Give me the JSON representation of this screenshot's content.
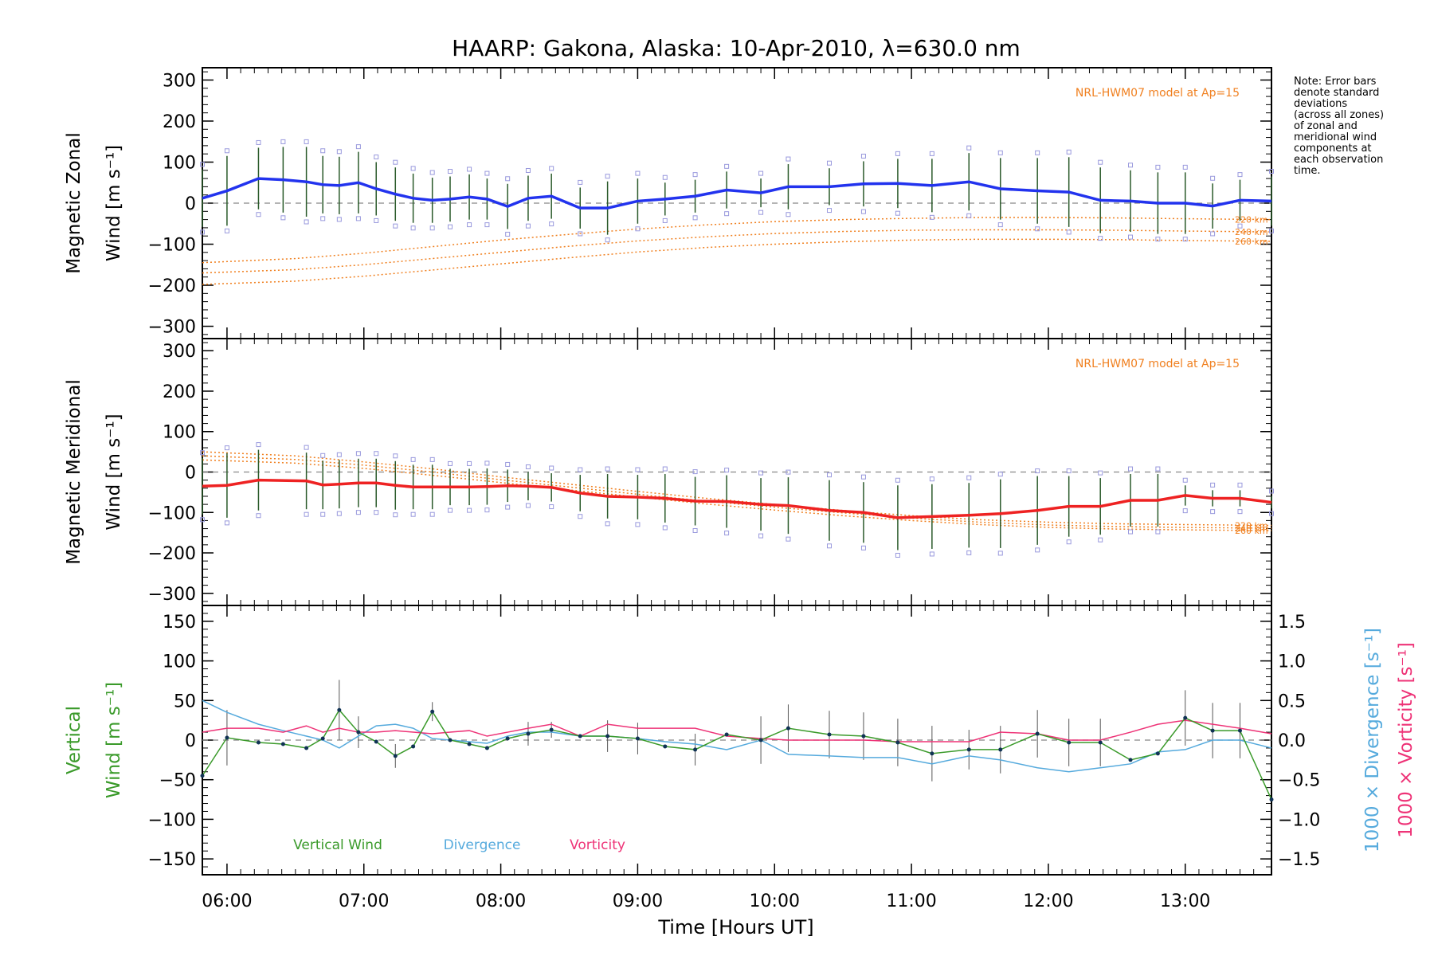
{
  "title": "HAARP: Gakona,  Alaska: 10-Apr-2010, λ=630.0 nm",
  "note_lines": [
    "Note: Error bars",
    "denote standard",
    "deviations",
    "(across all zones)",
    "of zonal and",
    "meridional wind",
    "components at",
    "each observation",
    "time."
  ],
  "colors": {
    "zonal": "#2233ee",
    "meridional": "#ee2222",
    "model": "#f08020",
    "vertical": "#3a9a2a",
    "divergence": "#55aadd",
    "vorticity": "#ee3377",
    "zone_points": "#9999dd",
    "error_bars": "#555555"
  },
  "chart_data": [
    {
      "type": "line",
      "panel": "zonal",
      "ylabel_line1": "Magnetic Zonal",
      "ylabel_line2": "Wind [m s⁻¹]",
      "model_label": "NRL-HWM07 model at Ap=15",
      "ylim": [
        -330,
        330
      ],
      "yticks": [
        -300,
        -200,
        -100,
        0,
        100,
        200,
        300
      ],
      "series": [
        {
          "role": "wind",
          "x": [
            5.82,
            6.0,
            6.23,
            6.41,
            6.58,
            6.7,
            6.82,
            6.96,
            7.09,
            7.23,
            7.36,
            7.5,
            7.63,
            7.77,
            7.9,
            8.05,
            8.2,
            8.37,
            8.58,
            8.78,
            9.0,
            9.2,
            9.42,
            9.65,
            9.9,
            10.1,
            10.4,
            10.65,
            10.9,
            11.15,
            11.42,
            11.65,
            11.92,
            12.15,
            12.38,
            12.6,
            12.8,
            13.0,
            13.2,
            13.4,
            13.63
          ],
          "y": [
            12,
            30,
            60,
            57,
            52,
            45,
            43,
            50,
            35,
            22,
            12,
            7,
            10,
            15,
            10,
            -8,
            12,
            17,
            -12,
            -12,
            5,
            10,
            17,
            32,
            25,
            40,
            40,
            47,
            48,
            43,
            52,
            35,
            30,
            27,
            7,
            5,
            0,
            0,
            -7,
            7,
            5
          ],
          "err": [
            70,
            85,
            75,
            80,
            85,
            70,
            70,
            75,
            65,
            65,
            60,
            55,
            55,
            55,
            50,
            55,
            55,
            55,
            50,
            65,
            55,
            40,
            40,
            45,
            35,
            55,
            45,
            55,
            60,
            65,
            70,
            75,
            80,
            85,
            80,
            75,
            75,
            75,
            55,
            50,
            60
          ]
        },
        {
          "role": "model",
          "name": "220 km",
          "x": [
            5.82,
            6.5,
            7.0,
            7.5,
            8.0,
            8.5,
            9.0,
            9.5,
            10.0,
            10.5,
            11.0,
            11.5,
            12.0,
            12.5,
            13.0,
            13.63
          ],
          "y": [
            -145,
            -135,
            -122,
            -106,
            -90,
            -76,
            -63,
            -53,
            -45,
            -40,
            -37,
            -35,
            -35,
            -36,
            -38,
            -40
          ]
        },
        {
          "role": "model",
          "name": "240 km",
          "x": [
            5.82,
            6.5,
            7.0,
            7.5,
            8.0,
            8.5,
            9.0,
            9.5,
            10.0,
            10.5,
            11.0,
            11.5,
            12.0,
            12.5,
            13.0,
            13.63
          ],
          "y": [
            -170,
            -162,
            -150,
            -135,
            -120,
            -105,
            -92,
            -82,
            -74,
            -69,
            -66,
            -65,
            -65,
            -66,
            -68,
            -70
          ]
        },
        {
          "role": "model",
          "name": "260 km",
          "x": [
            5.82,
            6.5,
            7.0,
            7.5,
            8.0,
            8.5,
            9.0,
            9.5,
            10.0,
            10.5,
            11.0,
            11.5,
            12.0,
            12.5,
            13.0,
            13.63
          ],
          "y": [
            -198,
            -190,
            -178,
            -163,
            -148,
            -133,
            -119,
            -108,
            -100,
            -94,
            -90,
            -88,
            -88,
            -89,
            -91,
            -93
          ]
        }
      ]
    },
    {
      "type": "line",
      "panel": "meridional",
      "ylabel_line1": "Magnetic Meridional",
      "ylabel_line2": "Wind [m s⁻¹]",
      "model_label": "NRL-HWM07 model at Ap=15",
      "ylim": [
        -330,
        330
      ],
      "yticks": [
        -300,
        -200,
        -100,
        0,
        100,
        200,
        300
      ],
      "series": [
        {
          "role": "wind",
          "x": [
            5.82,
            6.0,
            6.23,
            6.58,
            6.7,
            6.82,
            6.96,
            7.09,
            7.23,
            7.36,
            7.5,
            7.63,
            7.77,
            7.9,
            8.05,
            8.2,
            8.37,
            8.58,
            8.78,
            9.0,
            9.2,
            9.42,
            9.65,
            9.9,
            10.1,
            10.4,
            10.65,
            10.9,
            11.15,
            11.42,
            11.65,
            11.92,
            12.15,
            12.38,
            12.6,
            12.8,
            13.0,
            13.2,
            13.4,
            13.63
          ],
          "y": [
            -35,
            -33,
            -20,
            -22,
            -32,
            -30,
            -27,
            -27,
            -33,
            -37,
            -37,
            -37,
            -37,
            -36,
            -34,
            -35,
            -38,
            -52,
            -60,
            -62,
            -65,
            -72,
            -73,
            -80,
            -83,
            -95,
            -100,
            -113,
            -110,
            -107,
            -103,
            -95,
            -85,
            -85,
            -70,
            -70,
            -58,
            -65,
            -65,
            -75
          ],
          "err": [
            70,
            80,
            75,
            70,
            60,
            60,
            60,
            60,
            60,
            55,
            55,
            45,
            45,
            45,
            40,
            35,
            35,
            45,
            55,
            55,
            60,
            60,
            65,
            65,
            70,
            75,
            75,
            80,
            80,
            80,
            85,
            85,
            75,
            70,
            65,
            65,
            25,
            20,
            20,
            15
          ]
        },
        {
          "role": "model",
          "name": "220 km",
          "x": [
            5.82,
            6.5,
            7.0,
            7.5,
            8.0,
            8.5,
            9.0,
            9.5,
            10.0,
            10.5,
            11.0,
            11.5,
            12.0,
            12.5,
            13.0,
            13.63
          ],
          "y": [
            50,
            40,
            25,
            8,
            -12,
            -30,
            -48,
            -65,
            -80,
            -95,
            -108,
            -118,
            -124,
            -128,
            -130,
            -132
          ]
        },
        {
          "role": "model",
          "name": "240 km",
          "x": [
            5.82,
            6.5,
            7.0,
            7.5,
            8.0,
            8.5,
            9.0,
            9.5,
            10.0,
            10.5,
            11.0,
            11.5,
            12.0,
            12.5,
            13.0,
            13.63
          ],
          "y": [
            40,
            31,
            17,
            0,
            -19,
            -37,
            -55,
            -72,
            -87,
            -101,
            -114,
            -124,
            -131,
            -135,
            -137,
            -139
          ]
        },
        {
          "role": "model",
          "name": "260 km",
          "x": [
            5.82,
            6.5,
            7.0,
            7.5,
            8.0,
            8.5,
            9.0,
            9.5,
            10.0,
            10.5,
            11.0,
            11.5,
            12.0,
            12.5,
            13.0,
            13.63
          ],
          "y": [
            30,
            22,
            9,
            -8,
            -26,
            -44,
            -62,
            -79,
            -94,
            -108,
            -120,
            -130,
            -137,
            -141,
            -143,
            -145
          ]
        }
      ]
    },
    {
      "type": "line",
      "panel": "vertical",
      "ylabel_line1": "Vertical",
      "ylabel_line2": "Wind [m s⁻¹]",
      "ylim": [
        -170,
        170
      ],
      "yticks": [
        -150,
        -100,
        -50,
        0,
        50,
        100,
        150
      ],
      "y2_lim": [
        -1.7,
        1.7
      ],
      "y2_ticks": [
        -1.5,
        -1.0,
        -0.5,
        0.0,
        0.5,
        1.0,
        1.5
      ],
      "y2_label_divergence": "1000 × Divergence [s⁻¹]",
      "y2_label_vorticity": "1000 × Vorticity [s⁻¹]",
      "legend": [
        "Vertical Wind",
        "Divergence",
        "Vorticity"
      ],
      "series": [
        {
          "name": "Vertical Wind",
          "x": [
            5.82,
            6.0,
            6.23,
            6.41,
            6.58,
            6.7,
            6.82,
            6.96,
            7.09,
            7.23,
            7.36,
            7.5,
            7.63,
            7.77,
            7.9,
            8.05,
            8.2,
            8.37,
            8.58,
            8.78,
            9.0,
            9.2,
            9.42,
            9.65,
            9.9,
            10.1,
            10.4,
            10.65,
            10.9,
            11.15,
            11.42,
            11.65,
            11.92,
            12.15,
            12.38,
            12.6,
            12.8,
            13.0,
            13.2,
            13.4,
            13.63
          ],
          "y": [
            -45,
            3,
            -3,
            -5,
            -10,
            2,
            38,
            10,
            -2,
            -20,
            -8,
            36,
            0,
            -5,
            -10,
            2,
            8,
            13,
            5,
            5,
            2,
            -8,
            -12,
            7,
            0,
            15,
            7,
            5,
            -3,
            -17,
            -12,
            -12,
            8,
            -3,
            -3,
            -25,
            -17,
            28,
            12,
            12,
            -75
          ],
          "err": [
            0,
            35,
            0,
            0,
            0,
            0,
            38,
            20,
            0,
            15,
            0,
            12,
            0,
            0,
            0,
            0,
            15,
            10,
            0,
            20,
            20,
            0,
            20,
            0,
            30,
            30,
            30,
            30,
            30,
            35,
            25,
            30,
            30,
            30,
            30,
            0,
            0,
            35,
            35,
            35,
            0
          ]
        },
        {
          "name": "Divergence",
          "x": [
            5.82,
            6.0,
            6.23,
            6.41,
            6.58,
            6.7,
            6.82,
            6.96,
            7.09,
            7.23,
            7.36,
            7.5,
            7.63,
            7.77,
            7.9,
            8.05,
            8.2,
            8.37,
            8.58,
            8.78,
            9.0,
            9.2,
            9.42,
            9.65,
            9.9,
            10.1,
            10.4,
            10.65,
            10.9,
            11.15,
            11.42,
            11.65,
            11.92,
            12.15,
            12.38,
            12.6,
            12.8,
            13.0,
            13.2,
            13.4,
            13.63
          ],
          "y": [
            0.5,
            0.35,
            0.2,
            0.12,
            0.05,
            0.0,
            -0.1,
            0.05,
            0.18,
            0.2,
            0.15,
            0.02,
            0.0,
            -0.02,
            -0.04,
            0.05,
            0.1,
            0.1,
            0.05,
            0.05,
            0.02,
            -0.02,
            -0.05,
            -0.12,
            0.0,
            -0.18,
            -0.2,
            -0.22,
            -0.22,
            -0.3,
            -0.2,
            -0.25,
            -0.35,
            -0.4,
            -0.35,
            -0.3,
            -0.15,
            -0.12,
            0.0,
            0.0,
            -0.1
          ]
        },
        {
          "name": "Vorticity",
          "x": [
            5.82,
            6.0,
            6.23,
            6.41,
            6.58,
            6.7,
            6.82,
            6.96,
            7.09,
            7.23,
            7.36,
            7.5,
            7.63,
            7.77,
            7.9,
            8.05,
            8.2,
            8.37,
            8.58,
            8.78,
            9.0,
            9.2,
            9.42,
            9.65,
            9.9,
            10.1,
            10.4,
            10.65,
            10.9,
            11.15,
            11.42,
            11.65,
            11.92,
            12.15,
            12.38,
            12.6,
            12.8,
            13.0,
            13.2,
            13.4,
            13.63
          ],
          "y": [
            0.1,
            0.15,
            0.15,
            0.1,
            0.18,
            0.1,
            0.15,
            0.1,
            0.1,
            0.12,
            0.1,
            0.08,
            0.1,
            0.12,
            0.05,
            0.1,
            0.15,
            0.2,
            0.05,
            0.2,
            0.15,
            0.15,
            0.15,
            0.05,
            0.02,
            0.0,
            0.0,
            0.0,
            -0.02,
            -0.02,
            -0.02,
            0.1,
            0.08,
            0.0,
            0.0,
            0.1,
            0.2,
            0.25,
            0.2,
            0.15,
            0.08
          ]
        }
      ]
    }
  ],
  "x_axis": {
    "label": "Time [Hours UT]",
    "xlim": [
      5.82,
      13.63
    ],
    "ticks": [
      6,
      7,
      8,
      9,
      10,
      11,
      12,
      13
    ],
    "tick_labels": [
      "06:00",
      "07:00",
      "08:00",
      "09:00",
      "10:00",
      "11:00",
      "12:00",
      "13:00"
    ]
  }
}
